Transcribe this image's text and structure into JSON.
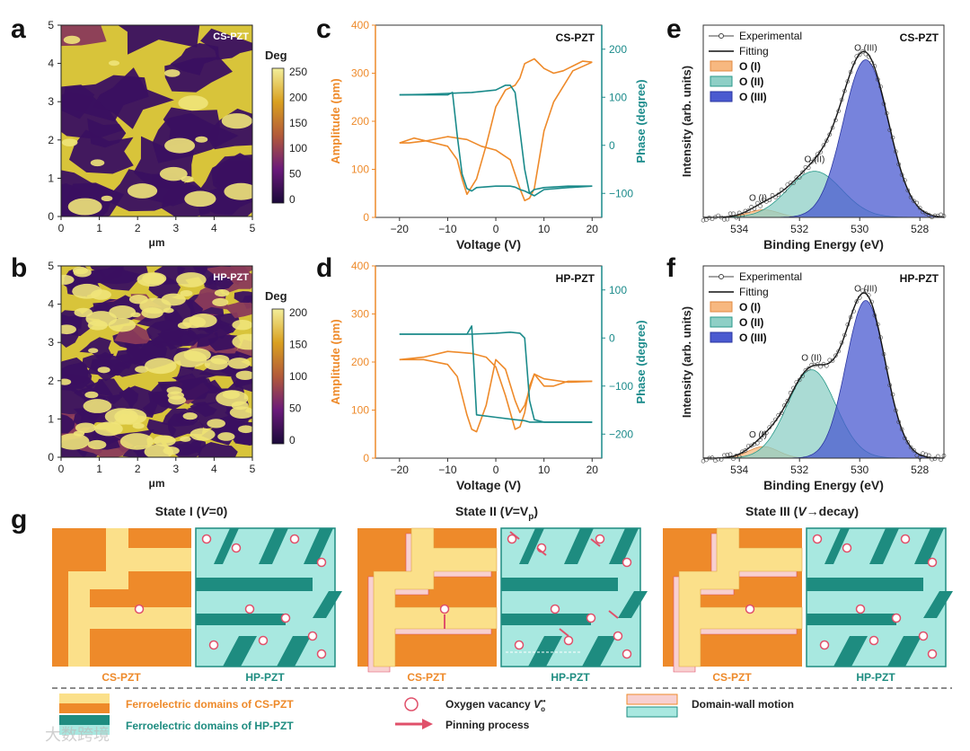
{
  "panels": {
    "a": {
      "letter": "a",
      "tag": "CS-PZT",
      "xlabel": "μm",
      "colorbar_title": "Deg",
      "colorbar_ticks": [
        "250",
        "200",
        "150",
        "100",
        "50",
        "0"
      ],
      "xticks": [
        "0",
        "1",
        "2",
        "3",
        "4",
        "5"
      ],
      "yticks": [
        "0",
        "1",
        "2",
        "3",
        "4",
        "5"
      ]
    },
    "b": {
      "letter": "b",
      "tag": "HP-PZT",
      "xlabel": "μm",
      "colorbar_title": "Deg",
      "colorbar_ticks": [
        "200",
        "150",
        "100",
        "50",
        "0"
      ],
      "xticks": [
        "0",
        "1",
        "2",
        "3",
        "4",
        "5"
      ],
      "yticks": [
        "0",
        "1",
        "2",
        "3",
        "4",
        "5"
      ]
    },
    "c": {
      "letter": "c",
      "tag": "CS-PZT",
      "xlabel": "Voltage (V)",
      "ylabel_left": "Amplitude (pm)",
      "ylabel_right": "Phase (degree)",
      "xticks": [
        "−20",
        "−10",
        "0",
        "10",
        "20"
      ],
      "yticks_left": [
        "0",
        "100",
        "200",
        "300",
        "400"
      ],
      "yticks_right": [
        "−100",
        "0",
        "100",
        "200"
      ]
    },
    "d": {
      "letter": "d",
      "tag": "HP-PZT",
      "xlabel": "Voltage (V)",
      "ylabel_left": "Amplitude (pm)",
      "ylabel_right": "Phase (degree)",
      "xticks": [
        "−20",
        "−10",
        "0",
        "10",
        "20"
      ],
      "yticks_left": [
        "0",
        "100",
        "200",
        "300",
        "400"
      ],
      "yticks_right": [
        "−200",
        "−100",
        "0",
        "100"
      ]
    },
    "e": {
      "letter": "e",
      "tag": "CS-PZT",
      "xlabel": "Binding Energy (eV)",
      "ylabel": "Intensity (arb. units)",
      "xticks": [
        "534",
        "532",
        "530",
        "528"
      ],
      "legend": [
        "Experimental",
        "Fitting",
        "O (I)",
        "O (II)",
        "O (III)"
      ],
      "peak_labels": [
        "O (I)",
        "O (II)",
        "O (III)"
      ]
    },
    "f": {
      "letter": "f",
      "tag": "HP-PZT",
      "xlabel": "Binding Energy (eV)",
      "ylabel": "Intensity (arb. units)",
      "xticks": [
        "534",
        "532",
        "530",
        "528"
      ],
      "legend": [
        "Experimental",
        "Fitting",
        "O (I)",
        "O (II)",
        "O (III)"
      ],
      "peak_labels": [
        "O (I)",
        "O (II)",
        "O (III)"
      ]
    },
    "g": {
      "letter": "g",
      "states": [
        {
          "prefix": "State I (",
          "var": "V",
          "suffix": "=0)"
        },
        {
          "prefix": "State II (",
          "var": "V",
          "suffix": "=V",
          "sub": "p",
          "close": ")"
        },
        {
          "prefix": "State III (",
          "var": "V",
          "suffix": "→decay)"
        }
      ],
      "box_labels": [
        "CS-PZT",
        "HP-PZT"
      ],
      "legend": {
        "cs_domains": "Ferroelectric domains of CS-PZT",
        "hp_domains": "Ferroelectric domains of HP-PZT",
        "vacancy": "Oxygen vacancy ",
        "vacancy_symbol": "V",
        "vacancy_sub": "o",
        "vacancy_sup": "••",
        "pinning": "Pinning process",
        "wall": "Domain-wall motion"
      }
    }
  },
  "watermark": "大数跨境",
  "colors": {
    "orange": "#ee8a2a",
    "teal": "#1a8a8a",
    "light_yellow": "#fbe08a",
    "light_teal": "#a8e8e0",
    "dark_teal": "#1e8c80",
    "pink": "#f8d0d0",
    "pin": "#e0506a"
  },
  "chart_data": [
    {
      "panel": "c",
      "type": "line",
      "xlim": [
        -25,
        22
      ],
      "ylim_left": [
        0,
        400
      ],
      "ylim_right": [
        -150,
        250
      ],
      "series": [
        {
          "name": "Amplitude",
          "axis": "left",
          "x": [
            -20,
            -17,
            -14,
            -10,
            -8,
            -7,
            -6,
            -4,
            -2,
            0,
            2,
            4,
            5,
            6,
            8,
            10,
            12,
            14,
            16,
            18,
            20
          ],
          "y": [
            155,
            165,
            158,
            148,
            120,
            80,
            48,
            80,
            150,
            230,
            265,
            275,
            290,
            320,
            330,
            310,
            300,
            305,
            315,
            325,
            323
          ]
        },
        {
          "name": "Amplitude",
          "axis": "left",
          "x": [
            20,
            16,
            12,
            10,
            9,
            8,
            7,
            6,
            5,
            3,
            0,
            -3,
            -6,
            -10,
            -14,
            -18,
            -20
          ],
          "y": [
            323,
            305,
            240,
            180,
            120,
            60,
            40,
            35,
            60,
            120,
            140,
            148,
            162,
            168,
            160,
            155,
            155
          ]
        },
        {
          "name": "Phase",
          "axis": "right",
          "x": [
            -20,
            -15,
            -10,
            -9,
            -8,
            -7,
            -6,
            -5,
            -4,
            0,
            2,
            3,
            4,
            5,
            6,
            7,
            8,
            10,
            15,
            20
          ],
          "y": [
            105,
            105,
            105,
            110,
            20,
            -60,
            -90,
            -95,
            -88,
            -85,
            -85,
            -85,
            -87,
            -92,
            -95,
            -100,
            -92,
            -88,
            -85,
            -85
          ]
        },
        {
          "name": "Phase",
          "axis": "right",
          "x": [
            20,
            15,
            10,
            8,
            7,
            6,
            5,
            4,
            3,
            2,
            0,
            -5,
            -10,
            -15,
            -20
          ],
          "y": [
            -85,
            -88,
            -92,
            -105,
            -100,
            -50,
            30,
            110,
            125,
            125,
            115,
            110,
            108,
            106,
            105
          ]
        }
      ]
    },
    {
      "panel": "d",
      "type": "line",
      "xlim": [
        -25,
        22
      ],
      "ylim_left": [
        0,
        400
      ],
      "ylim_right": [
        -250,
        150
      ],
      "series": [
        {
          "name": "Amplitude",
          "axis": "left",
          "x": [
            -20,
            -15,
            -10,
            -8,
            -6,
            -5,
            -4,
            -2,
            0,
            2,
            4,
            5,
            6,
            8,
            10,
            12,
            15,
            20
          ],
          "y": [
            205,
            205,
            195,
            170,
            90,
            60,
            55,
            110,
            205,
            185,
            120,
            95,
            110,
            175,
            150,
            150,
            160,
            160
          ]
        },
        {
          "name": "Amplitude",
          "axis": "left",
          "x": [
            20,
            15,
            10,
            8,
            7,
            6,
            5,
            4,
            2,
            0,
            -2,
            -5,
            -10,
            -15,
            -20
          ],
          "y": [
            160,
            158,
            165,
            175,
            150,
            95,
            65,
            60,
            130,
            190,
            210,
            218,
            222,
            210,
            205
          ]
        },
        {
          "name": "Phase",
          "axis": "right",
          "x": [
            -20,
            -10,
            -6,
            -5,
            -4,
            0,
            4,
            6,
            7,
            8,
            10,
            15,
            20
          ],
          "y": [
            8,
            8,
            8,
            25,
            -160,
            -165,
            -170,
            -172,
            -175,
            -175,
            -175,
            -175,
            -175
          ]
        },
        {
          "name": "Phase",
          "axis": "right",
          "x": [
            20,
            15,
            10,
            8,
            7,
            6,
            5,
            3,
            0,
            -5,
            -10,
            -20
          ],
          "y": [
            -175,
            -175,
            -175,
            -170,
            -130,
            0,
            10,
            12,
            10,
            8,
            8,
            8
          ]
        }
      ]
    },
    {
      "panel": "e",
      "type": "line",
      "xlim": [
        535.2,
        527.2
      ],
      "peaks": [
        {
          "name": "O (I)",
          "center": 533.2,
          "height": 0.04,
          "width": 0.5
        },
        {
          "name": "O (II)",
          "center": 531.5,
          "height": 0.24,
          "width": 0.9
        },
        {
          "name": "O (III)",
          "center": 529.8,
          "height": 0.82,
          "width": 0.75
        }
      ]
    },
    {
      "panel": "f",
      "type": "line",
      "xlim": [
        535.2,
        527.2
      ],
      "peaks": [
        {
          "name": "O (I)",
          "center": 533.2,
          "height": 0.06,
          "width": 0.5
        },
        {
          "name": "O (II)",
          "center": 531.6,
          "height": 0.46,
          "width": 0.8
        },
        {
          "name": "O (III)",
          "center": 529.8,
          "height": 0.82,
          "width": 0.65
        }
      ]
    }
  ]
}
